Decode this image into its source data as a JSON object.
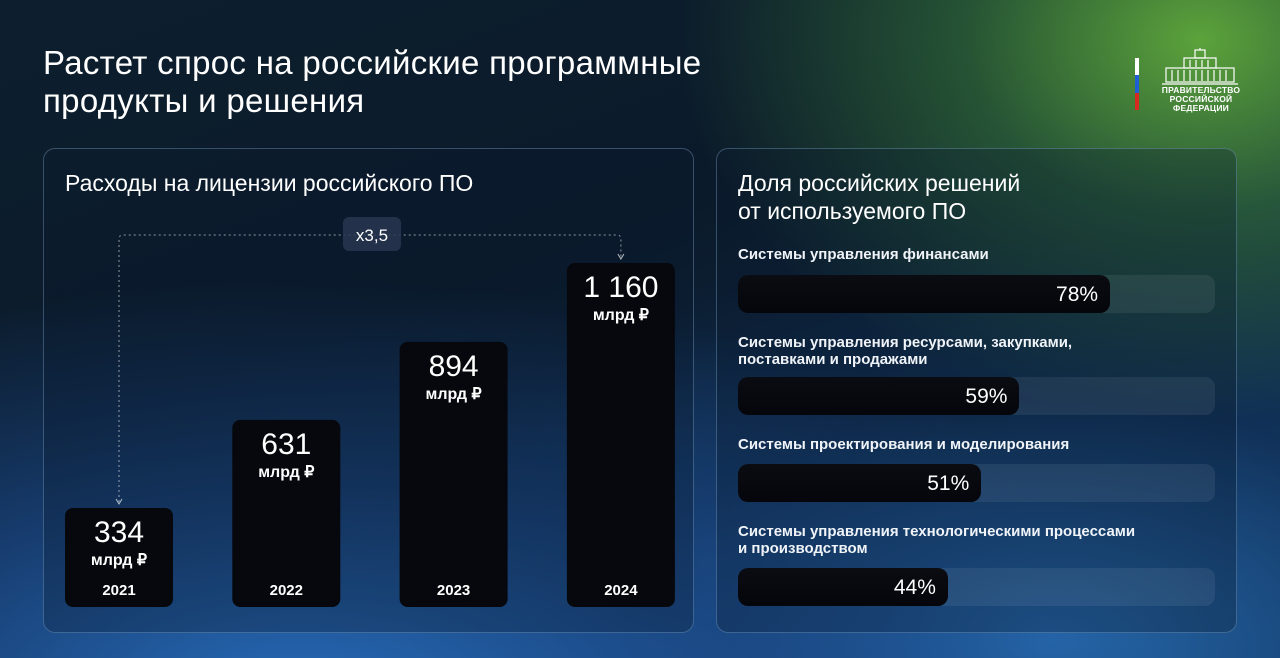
{
  "title": {
    "line1": "Растет спрос на российские программные",
    "line2": "продукты и решения"
  },
  "emblem": {
    "line1": "ПРАВИТЕЛЬСТВО",
    "line2": "РОССИЙСКОЙ",
    "line3": "ФЕДЕРАЦИИ",
    "flag_colors": [
      "#ffffff",
      "#1f5fd6",
      "#d52b1e"
    ]
  },
  "colors": {
    "bar_fill": "#07080d",
    "panel_border": "#8cb4dc",
    "text": "#ffffff"
  },
  "chart_data": [
    {
      "type": "bar",
      "title": "Расходы на лицензии российского ПО",
      "categories": [
        "2021",
        "2022",
        "2023",
        "2024"
      ],
      "values": [
        334,
        631,
        894,
        1160
      ],
      "value_labels": [
        "334",
        "631",
        "894",
        "1 160"
      ],
      "unit_label": "млрд ₽",
      "annotation": "x3,5",
      "ylim": [
        0,
        1160
      ],
      "grid": false
    },
    {
      "type": "bar",
      "orientation": "horizontal",
      "title_line1": "Доля российских решений",
      "title_line2": "от используемого ПО",
      "categories": [
        [
          "Системы управления финансами"
        ],
        [
          "Системы управления ресурсами, закупками,",
          "поставками и продажами"
        ],
        [
          "Системы проектирования и моделирования"
        ],
        [
          "Системы управления технологическими процессами",
          "и производством"
        ]
      ],
      "values": [
        78,
        59,
        51,
        44
      ],
      "value_labels": [
        "78%",
        "59%",
        "51%",
        "44%"
      ],
      "xlim": [
        0,
        100
      ]
    }
  ]
}
